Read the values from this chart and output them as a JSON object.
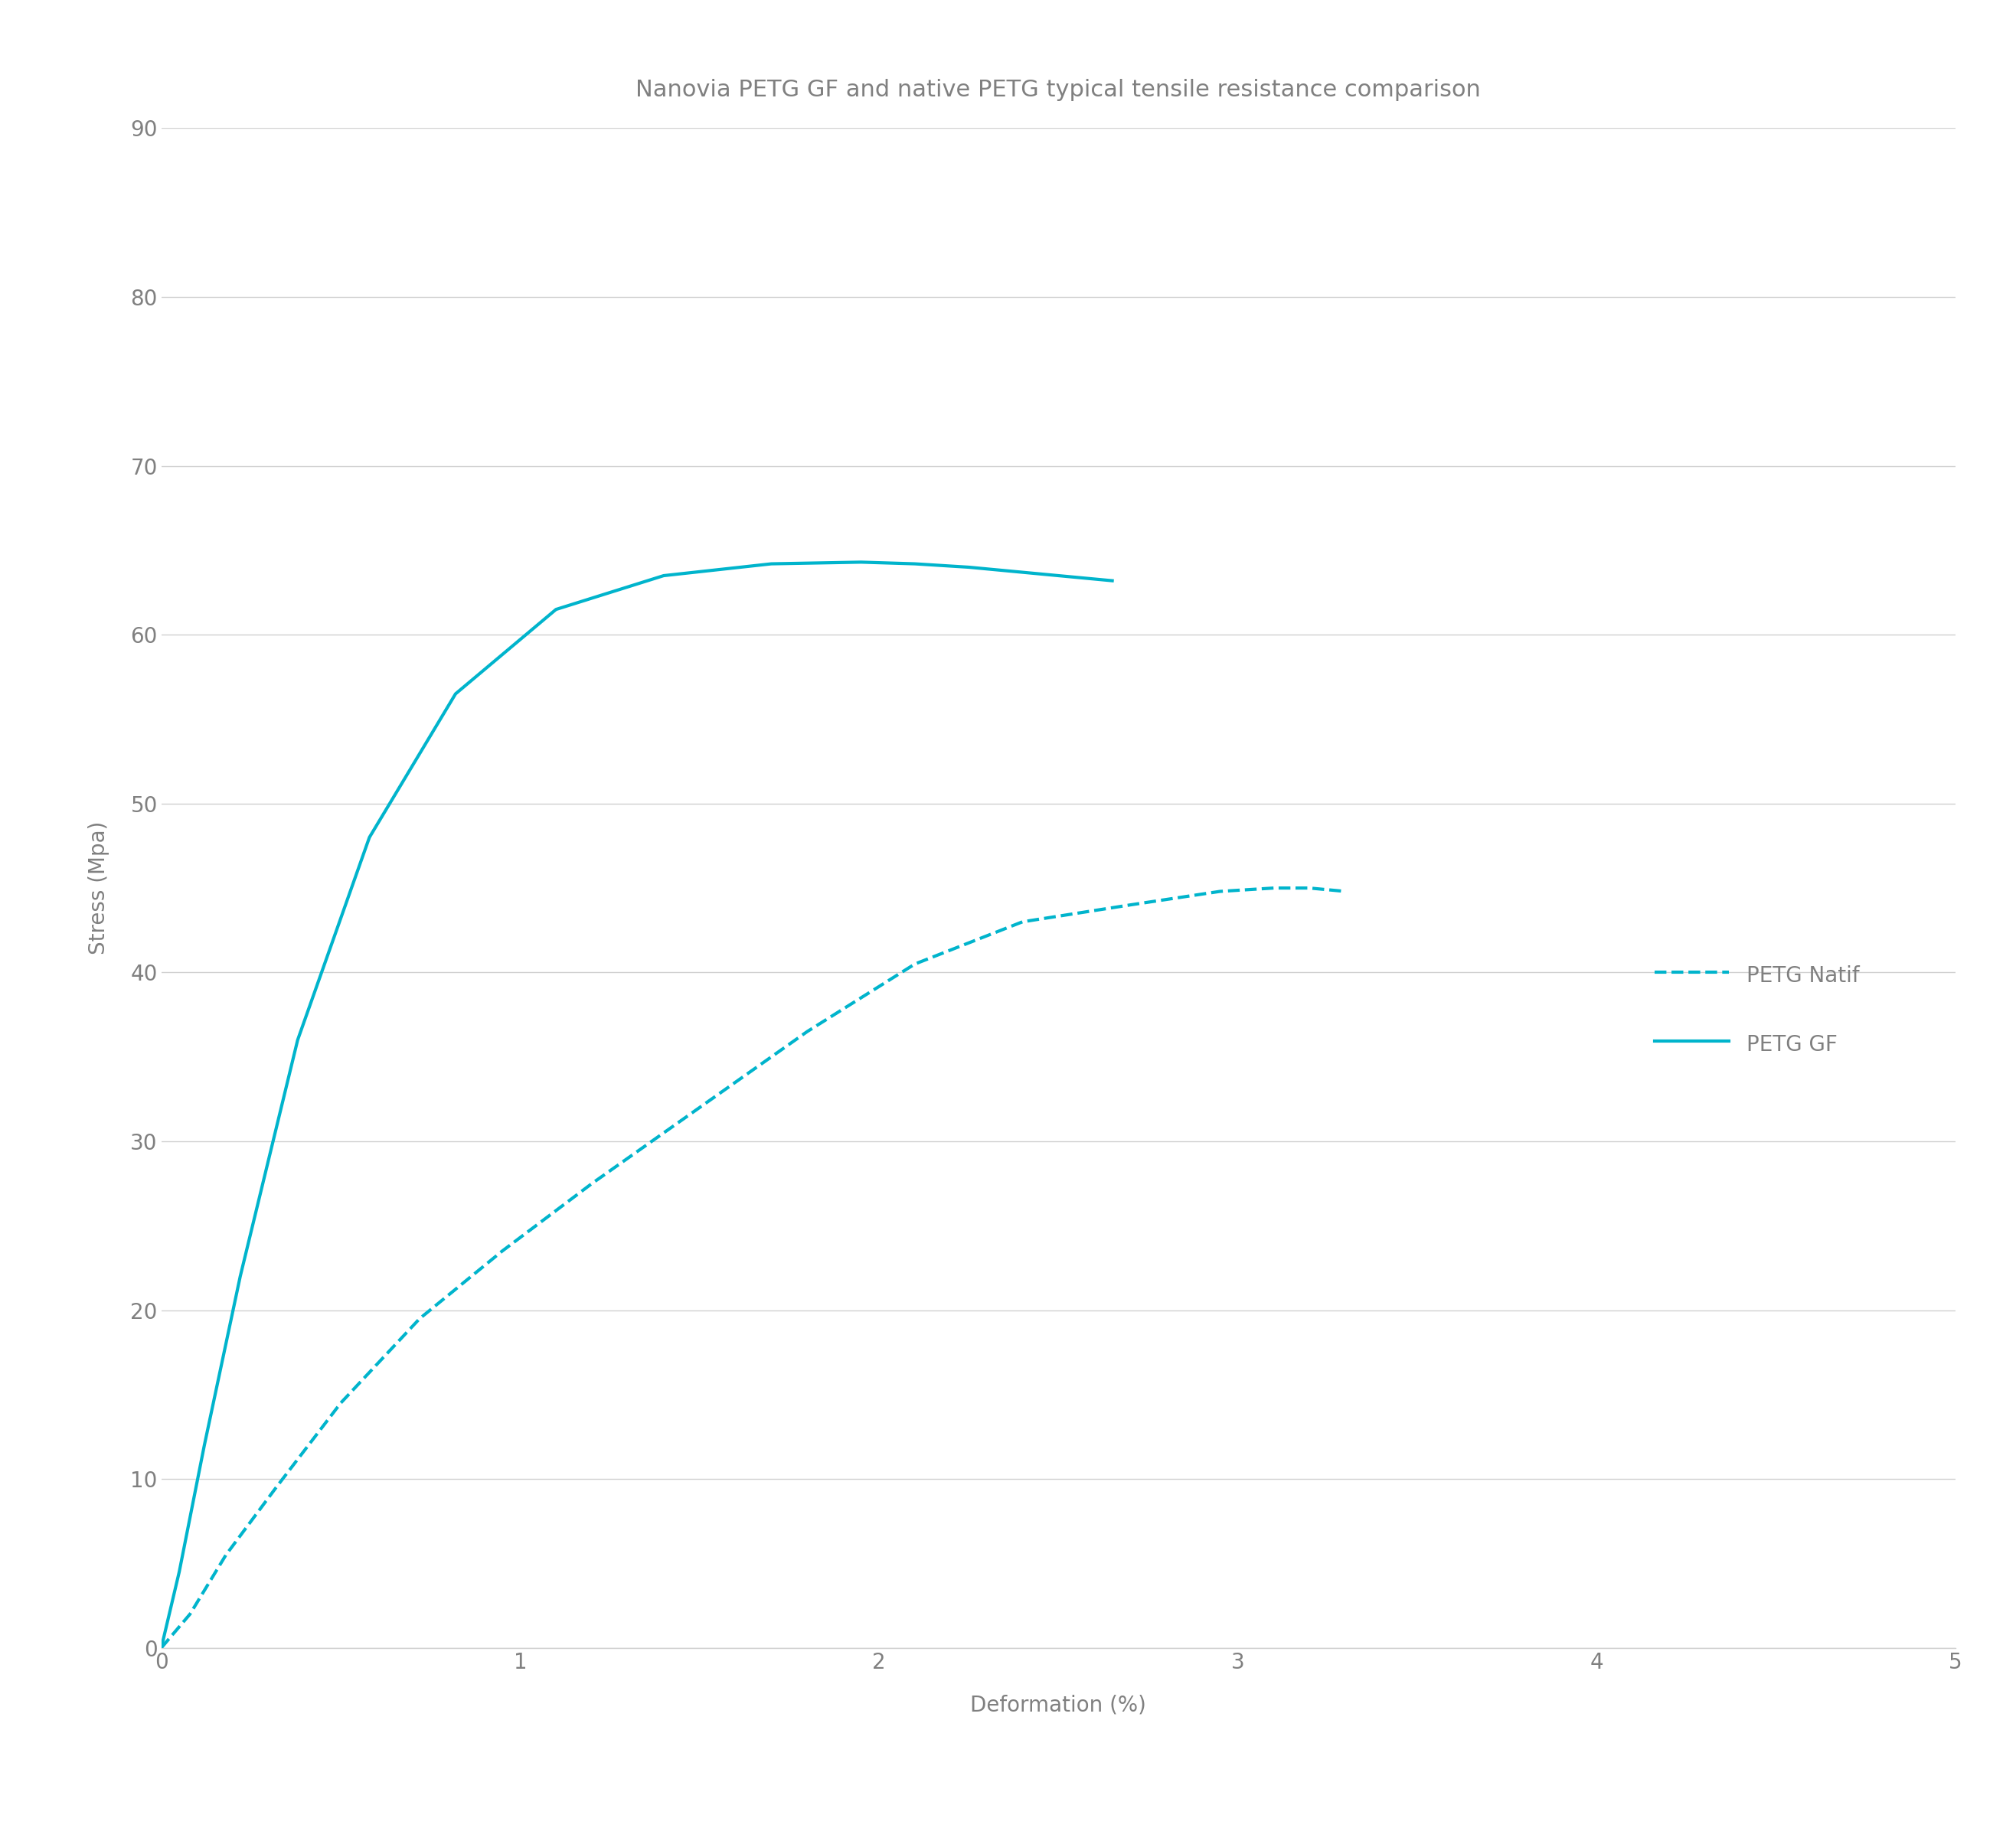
{
  "title": "Nanovia PETG GF and native PETG typical tensile resistance comparison",
  "xlabel": "Deformation (%)",
  "ylabel": "Stress (Mpa)",
  "xlim": [
    0,
    5
  ],
  "ylim": [
    0,
    90
  ],
  "xticks": [
    0,
    1,
    2,
    3,
    4,
    5
  ],
  "yticks": [
    0,
    10,
    20,
    30,
    40,
    50,
    60,
    70,
    80,
    90
  ],
  "line_color": "#00b4cc",
  "background_color": "#ffffff",
  "grid_color": "#d0d0d0",
  "tick_label_color": "#808080",
  "title_color": "#808080",
  "axis_label_color": "#808080",
  "legend_labels": [
    "PETG Natif",
    "PETG GF"
  ],
  "petg_natif_x": [
    0,
    0.08,
    0.18,
    0.32,
    0.5,
    0.72,
    0.95,
    1.2,
    1.5,
    1.8,
    2.1,
    2.4,
    2.7,
    2.95,
    3.1,
    3.2,
    3.3
  ],
  "petg_natif_y": [
    0,
    2.0,
    5.5,
    9.5,
    14.5,
    19.5,
    23.5,
    27.5,
    32.0,
    36.5,
    40.5,
    43.0,
    44.0,
    44.8,
    45.0,
    45.0,
    44.8
  ],
  "petg_gf_x": [
    0,
    0.05,
    0.12,
    0.22,
    0.38,
    0.58,
    0.82,
    1.1,
    1.4,
    1.7,
    1.95,
    2.1,
    2.25,
    2.35,
    2.5,
    2.65
  ],
  "petg_gf_y": [
    0,
    4.5,
    12.0,
    22.0,
    36.0,
    48.0,
    56.5,
    61.5,
    63.5,
    64.2,
    64.3,
    64.2,
    64.0,
    63.8,
    63.5,
    63.2
  ],
  "title_fontsize": 22,
  "axis_label_fontsize": 20,
  "tick_fontsize": 20,
  "legend_fontsize": 20,
  "linewidth": 3.0
}
